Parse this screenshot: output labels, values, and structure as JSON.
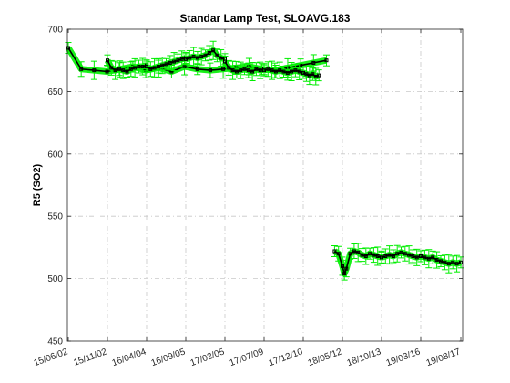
{
  "chart_data": {
    "type": "scatter",
    "title": "Standar Lamp Test, SLOAVG.183",
    "xlabel": "",
    "ylabel": "R5 (SO2)",
    "ylim": [
      450,
      700
    ],
    "yticks": [
      450,
      500,
      550,
      600,
      650,
      700
    ],
    "xticklabels": [
      "15/06/02",
      "15/11/02",
      "16/04/04",
      "16/09/05",
      "17/02/05",
      "17/07/09",
      "17/12/10",
      "18/05/12",
      "18/10/13",
      "19/03/16",
      "19/08/17"
    ],
    "grid": true,
    "colors": {
      "errorbar": "#00ee00",
      "marker": "#000000"
    },
    "series": [
      {
        "name": "",
        "segments": [
          {
            "x_range": [
              "15/06/02",
              "18/03/10"
            ],
            "points": [
              [
                0.0,
                685
              ],
              [
                0.05,
                668
              ],
              [
                0.1,
                667
              ],
              [
                0.15,
                666
              ],
              [
                0.2,
                668
              ],
              [
                0.25,
                670
              ],
              [
                0.3,
                667
              ],
              [
                0.35,
                669
              ],
              [
                0.4,
                666
              ],
              [
                0.45,
                670
              ],
              [
                0.5,
                668
              ],
              [
                0.55,
                667
              ],
              [
                0.6,
                668
              ],
              [
                0.65,
                669
              ],
              [
                0.7,
                670
              ],
              [
                0.75,
                668
              ],
              [
                0.8,
                667
              ],
              [
                0.85,
                669
              ],
              [
                0.9,
                671
              ],
              [
                0.95,
                673
              ],
              [
                1.0,
                675
              ]
            ]
          },
          {
            "x_range": [
              "15/11/02",
              "16/04/04"
            ],
            "points": [
              [
                0.0,
                675
              ],
              [
                0.1,
                669
              ],
              [
                0.2,
                667
              ],
              [
                0.3,
                668
              ],
              [
                0.4,
                667
              ],
              [
                0.5,
                666
              ],
              [
                0.6,
                668
              ],
              [
                0.7,
                669
              ],
              [
                0.8,
                670
              ],
              [
                0.9,
                670
              ],
              [
                1.0,
                671
              ]
            ]
          },
          {
            "x_range": [
              "16/04/04",
              "16/09/05"
            ],
            "points": [
              [
                0.0,
                670
              ],
              [
                0.1,
                668
              ],
              [
                0.2,
                669
              ],
              [
                0.3,
                670
              ],
              [
                0.4,
                671
              ],
              [
                0.5,
                672
              ],
              [
                0.6,
                673
              ],
              [
                0.7,
                674
              ],
              [
                0.8,
                675
              ],
              [
                0.9,
                676
              ],
              [
                1.0,
                677
              ]
            ]
          },
          {
            "x_range": [
              "16/09/05",
              "17/02/05"
            ],
            "points": [
              [
                0.0,
                676
              ],
              [
                0.1,
                677
              ],
              [
                0.2,
                678
              ],
              [
                0.3,
                677
              ],
              [
                0.4,
                678
              ],
              [
                0.5,
                679
              ],
              [
                0.6,
                681
              ],
              [
                0.7,
                683
              ],
              [
                0.8,
                679
              ],
              [
                0.9,
                677
              ],
              [
                1.0,
                676
              ]
            ]
          },
          {
            "x_range": [
              "17/02/05",
              "17/07/09"
            ],
            "points": [
              [
                0.0,
                674
              ],
              [
                0.1,
                669
              ],
              [
                0.2,
                667
              ],
              [
                0.3,
                666
              ],
              [
                0.4,
                667
              ],
              [
                0.5,
                668
              ],
              [
                0.6,
                667
              ],
              [
                0.7,
                666
              ],
              [
                0.8,
                668
              ],
              [
                0.9,
                667
              ],
              [
                1.0,
                668
              ]
            ]
          },
          {
            "x_range": [
              "17/07/09",
              "17/12/10"
            ],
            "points": [
              [
                0.0,
                667
              ],
              [
                0.1,
                668
              ],
              [
                0.2,
                667
              ],
              [
                0.3,
                666
              ],
              [
                0.4,
                667
              ],
              [
                0.5,
                666
              ],
              [
                0.6,
                665
              ],
              [
                0.7,
                666
              ],
              [
                0.8,
                667
              ],
              [
                0.9,
                666
              ],
              [
                1.0,
                665
              ]
            ]
          },
          {
            "x_range": [
              "17/12/10",
              "18/05/12"
            ],
            "points": [
              [
                0.0,
                665
              ],
              [
                0.08,
                664
              ],
              [
                0.16,
                663
              ],
              [
                0.24,
                664
              ],
              [
                0.32,
                662
              ],
              [
                0.4,
                663
              ]
            ]
          },
          {
            "x_range": [
              "18/05/12",
              "18/10/13"
            ],
            "points": [
              [
                -0.2,
                522
              ],
              [
                -0.1,
                520
              ],
              [
                0.0,
                510
              ],
              [
                0.05,
                504
              ],
              [
                0.1,
                508
              ],
              [
                0.2,
                520
              ],
              [
                0.3,
                522
              ],
              [
                0.4,
                521
              ],
              [
                0.5,
                519
              ],
              [
                0.6,
                518
              ],
              [
                0.7,
                520
              ],
              [
                0.8,
                519
              ],
              [
                0.9,
                518
              ],
              [
                1.0,
                517
              ]
            ]
          },
          {
            "x_range": [
              "18/10/13",
              "19/03/16"
            ],
            "points": [
              [
                0.0,
                517
              ],
              [
                0.1,
                518
              ],
              [
                0.2,
                519
              ],
              [
                0.3,
                518
              ],
              [
                0.4,
                520
              ],
              [
                0.5,
                521
              ],
              [
                0.6,
                520
              ],
              [
                0.7,
                519
              ],
              [
                0.8,
                518
              ],
              [
                0.9,
                517
              ],
              [
                1.0,
                518
              ]
            ]
          },
          {
            "x_range": [
              "19/03/16",
              "19/08/17"
            ],
            "points": [
              [
                0.0,
                518
              ],
              [
                0.1,
                517
              ],
              [
                0.2,
                516
              ],
              [
                0.3,
                517
              ],
              [
                0.4,
                515
              ],
              [
                0.5,
                514
              ],
              [
                0.6,
                513
              ],
              [
                0.7,
                512
              ],
              [
                0.8,
                513
              ],
              [
                0.9,
                512
              ],
              [
                1.0,
                513
              ]
            ]
          }
        ]
      }
    ]
  }
}
